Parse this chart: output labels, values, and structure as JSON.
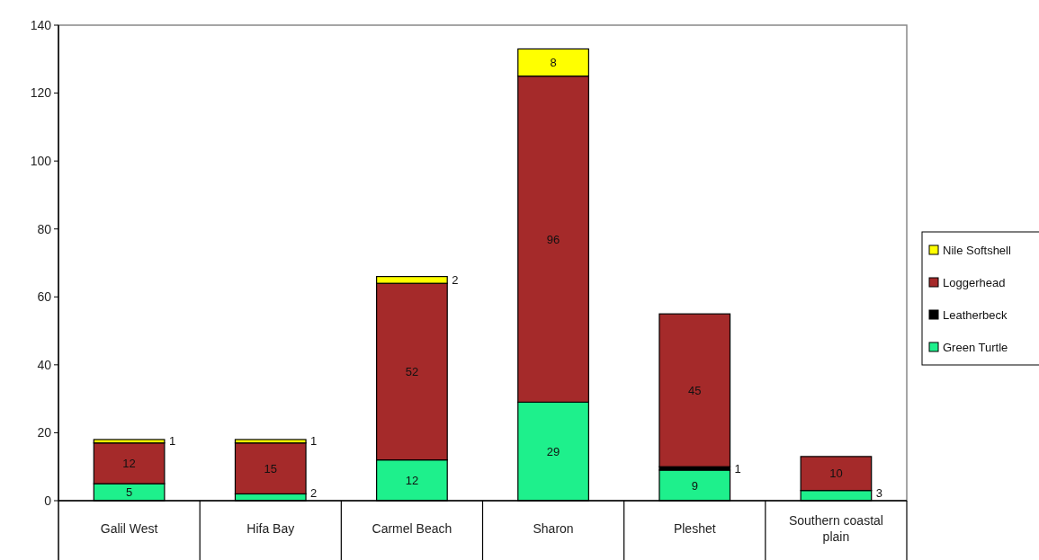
{
  "chart_data": {
    "type": "bar",
    "stacked": true,
    "categories": [
      "Galil West",
      "Hifa Bay",
      "Carmel Beach",
      "Sharon",
      "Pleshet",
      "Southern coastal plain"
    ],
    "series": [
      {
        "name": "Green Turtle",
        "color": "#1ef08c",
        "values": [
          5,
          2,
          12,
          29,
          9,
          3
        ]
      },
      {
        "name": "Leatherbeck",
        "color": "#000000",
        "values": [
          null,
          null,
          null,
          null,
          1,
          null
        ]
      },
      {
        "name": "Loggerhead",
        "color": "#a52a2a",
        "values": [
          12,
          15,
          52,
          96,
          45,
          10
        ]
      },
      {
        "name": "Nile Softshell",
        "color": "#ffff00",
        "values": [
          1,
          1,
          2,
          8,
          null,
          null
        ]
      }
    ],
    "ylim": [
      0,
      140
    ],
    "yticks": [
      0,
      20,
      40,
      60,
      80,
      100,
      120,
      140
    ],
    "data_labels": true,
    "legend": "right",
    "grid": false
  }
}
